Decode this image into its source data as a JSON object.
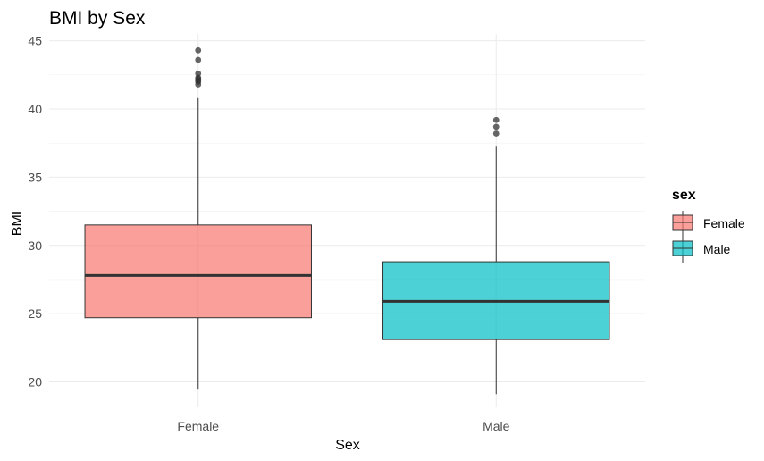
{
  "chart_data": {
    "type": "boxplot",
    "title": "BMI by Sex",
    "xlabel": "Sex",
    "ylabel": "BMI",
    "ylim": [
      18.2,
      45.5
    ],
    "yticks": [
      20,
      25,
      30,
      35,
      40,
      45
    ],
    "grid": true,
    "categories": [
      "Female",
      "Male"
    ],
    "boxes": [
      {
        "category": "Female",
        "lower_whisker": 19.5,
        "q1": 24.7,
        "median": 27.8,
        "q3": 31.5,
        "upper_whisker": 40.8,
        "outliers": [
          41.8,
          42.0,
          42.1,
          42.2,
          42.3,
          42.6,
          43.6,
          44.3
        ],
        "color": "#f8766d"
      },
      {
        "category": "Male",
        "lower_whisker": 19.1,
        "q1": 23.1,
        "median": 25.9,
        "q3": 28.8,
        "upper_whisker": 37.3,
        "outliers": [
          38.2,
          38.7,
          39.2
        ],
        "color": "#00bfc4"
      }
    ],
    "legend": {
      "title": "sex",
      "position": "right",
      "entries": [
        "Female",
        "Male"
      ]
    }
  }
}
